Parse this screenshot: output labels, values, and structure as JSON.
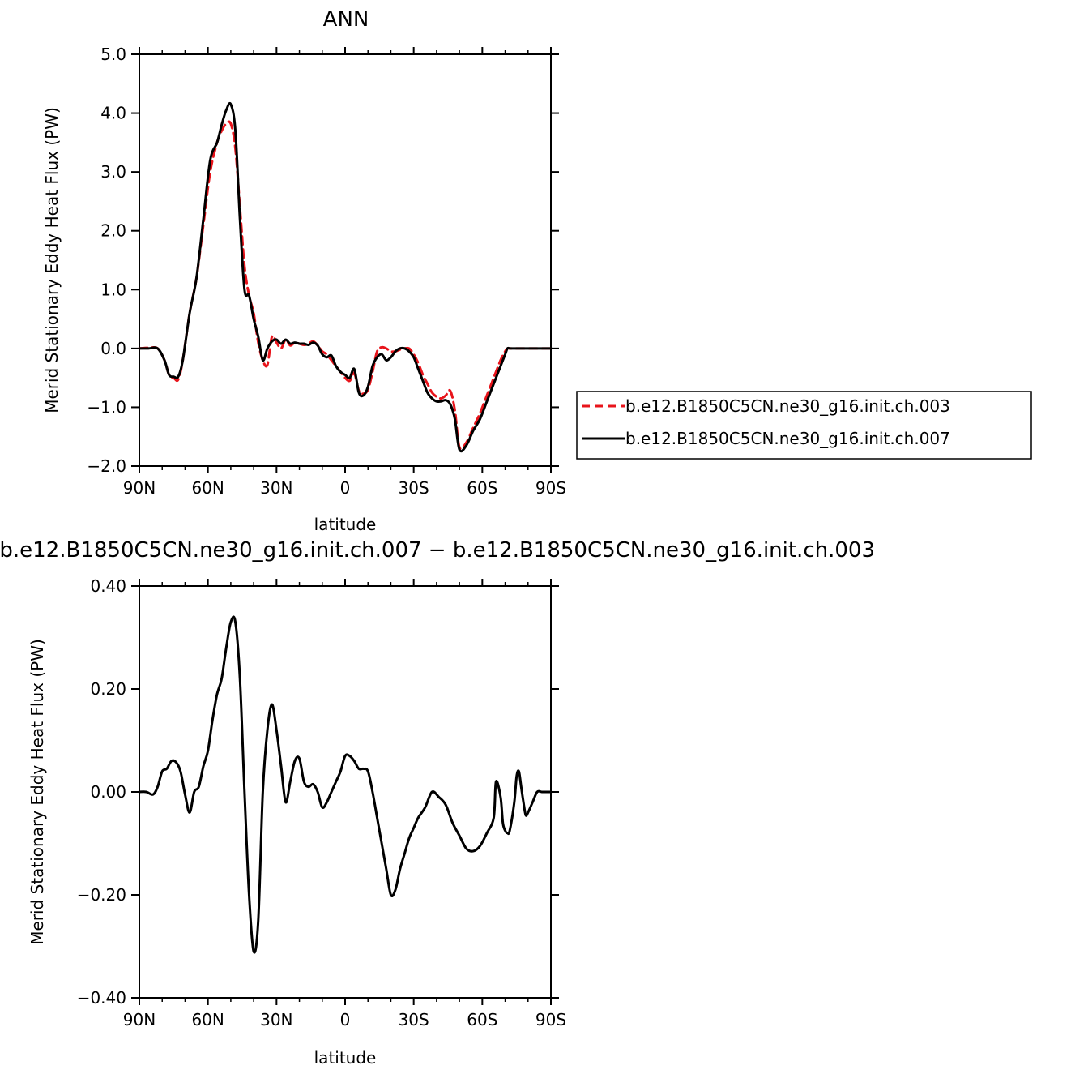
{
  "chart_data": [
    {
      "type": "line",
      "title": "ANN",
      "xlabel": "latitude",
      "ylabel": "Merid Stationary Eddy Heat Flux (PW)",
      "xlim": [
        90,
        -90
      ],
      "ylim": [
        -2.0,
        5.0
      ],
      "x_ticks": [
        {
          "value": 90,
          "label": "90N"
        },
        {
          "value": 60,
          "label": "60N"
        },
        {
          "value": 30,
          "label": "30N"
        },
        {
          "value": 0,
          "label": "0"
        },
        {
          "value": -30,
          "label": "30S"
        },
        {
          "value": -60,
          "label": "60S"
        },
        {
          "value": -90,
          "label": "90S"
        }
      ],
      "y_ticks": [
        {
          "value": 5.0,
          "label": "5.0"
        },
        {
          "value": 4.0,
          "label": "4.0"
        },
        {
          "value": 3.0,
          "label": "3.0"
        },
        {
          "value": 2.0,
          "label": "2.0"
        },
        {
          "value": 1.0,
          "label": "1.0"
        },
        {
          "value": 0.0,
          "label": "0.0"
        },
        {
          "value": -1.0,
          "label": "−1.0"
        },
        {
          "value": -2.0,
          "label": "−2.0"
        }
      ],
      "legend": "right",
      "series": [
        {
          "name": "b.e12.B1850C5CN.ne30_g16.init.ch.003",
          "color": "#e8141b",
          "dash": "dashed",
          "x": [
            90,
            86,
            82,
            79,
            77,
            75,
            73,
            71,
            68,
            65,
            62,
            59,
            56,
            54,
            52,
            50,
            48,
            46,
            44,
            42,
            40,
            38,
            36,
            34,
            32,
            30,
            28,
            26,
            24,
            22,
            20,
            18,
            16,
            14,
            12,
            10,
            8,
            6,
            4,
            2,
            0,
            -2,
            -4,
            -6,
            -8,
            -10,
            -12,
            -14,
            -16,
            -18,
            -20,
            -22,
            -24,
            -26,
            -28,
            -30,
            -32,
            -34,
            -36,
            -38,
            -40,
            -42,
            -44,
            -46,
            -48,
            -50,
            -53,
            -56,
            -59,
            -62,
            -65,
            -68,
            -70,
            -71,
            -72,
            -73,
            -74,
            -76,
            -78,
            -80,
            -82,
            -84,
            -86,
            -88,
            -90
          ],
          "y": [
            0.0,
            0.01,
            0.0,
            -0.2,
            -0.45,
            -0.5,
            -0.53,
            -0.2,
            0.6,
            1.2,
            2.1,
            3.0,
            3.5,
            3.7,
            3.82,
            3.82,
            3.4,
            2.4,
            1.4,
            0.9,
            0.6,
            0.1,
            -0.2,
            -0.28,
            0.2,
            0.1,
            0.0,
            0.15,
            0.05,
            0.1,
            0.08,
            0.06,
            0.08,
            0.12,
            0.05,
            -0.05,
            -0.1,
            -0.2,
            -0.3,
            -0.4,
            -0.5,
            -0.55,
            -0.42,
            -0.72,
            -0.77,
            -0.7,
            -0.4,
            -0.05,
            0.02,
            0.0,
            -0.05,
            -0.05,
            -0.02,
            0.0,
            0.0,
            -0.1,
            -0.25,
            -0.45,
            -0.6,
            -0.75,
            -0.82,
            -0.85,
            -0.8,
            -0.72,
            -1.05,
            -1.68,
            -1.6,
            -1.35,
            -1.1,
            -0.8,
            -0.5,
            -0.2,
            -0.05,
            0.0,
            0.0,
            0.0,
            0.0,
            0.0,
            0.0,
            0.0,
            0.0,
            0.0,
            0.0,
            0.0,
            0.0
          ]
        },
        {
          "name": "b.e12.B1850C5CN.ne30_g16.init.ch.007",
          "color": "#000000",
          "dash": "solid",
          "x": [
            90,
            86,
            82,
            79,
            77,
            75,
            73,
            71,
            68,
            65,
            62,
            59,
            56,
            54,
            52,
            50,
            48,
            46,
            44,
            42,
            40,
            38,
            36,
            34,
            32,
            30,
            28,
            26,
            24,
            22,
            20,
            18,
            16,
            14,
            12,
            10,
            8,
            6,
            4,
            2,
            0,
            -2,
            -4,
            -6,
            -8,
            -10,
            -12,
            -14,
            -16,
            -18,
            -20,
            -22,
            -24,
            -26,
            -28,
            -30,
            -32,
            -34,
            -36,
            -38,
            -40,
            -42,
            -44,
            -46,
            -48,
            -50,
            -53,
            -56,
            -59,
            -62,
            -65,
            -68,
            -70,
            -71,
            -72,
            -73,
            -74,
            -76,
            -78,
            -80,
            -82,
            -84,
            -86,
            -88,
            -90
          ],
          "y": [
            0.0,
            0.0,
            0.0,
            -0.2,
            -0.45,
            -0.48,
            -0.48,
            -0.2,
            0.6,
            1.2,
            2.2,
            3.2,
            3.5,
            3.8,
            4.05,
            4.15,
            3.7,
            2.2,
            1.0,
            0.9,
            0.5,
            0.2,
            -0.2,
            0.0,
            0.12,
            0.15,
            0.08,
            0.15,
            0.08,
            0.1,
            0.08,
            0.08,
            0.06,
            0.1,
            0.05,
            -0.1,
            -0.15,
            -0.12,
            -0.3,
            -0.4,
            -0.45,
            -0.5,
            -0.35,
            -0.75,
            -0.8,
            -0.65,
            -0.3,
            -0.15,
            -0.1,
            -0.2,
            -0.15,
            -0.05,
            0.0,
            0.0,
            -0.05,
            -0.15,
            -0.35,
            -0.55,
            -0.75,
            -0.85,
            -0.9,
            -0.9,
            -0.88,
            -0.95,
            -1.2,
            -1.72,
            -1.65,
            -1.4,
            -1.2,
            -0.9,
            -0.6,
            -0.3,
            -0.1,
            0.0,
            0.0,
            0.0,
            0.0,
            0.0,
            0.0,
            0.0,
            0.0,
            0.0,
            0.0,
            0.0,
            0.0
          ]
        }
      ]
    },
    {
      "type": "line",
      "title": "b.e12.B1850C5CN.ne30_g16.init.ch.007 − b.e12.B1850C5CN.ne30_g16.init.ch.003",
      "xlabel": "latitude",
      "ylabel": "Merid Stationary Eddy Heat Flux (PW)",
      "xlim": [
        90,
        -90
      ],
      "ylim": [
        -0.4,
        0.4
      ],
      "x_ticks": [
        {
          "value": 90,
          "label": "90N"
        },
        {
          "value": 60,
          "label": "60N"
        },
        {
          "value": 30,
          "label": "30N"
        },
        {
          "value": 0,
          "label": "0"
        },
        {
          "value": -30,
          "label": "30S"
        },
        {
          "value": -60,
          "label": "60S"
        },
        {
          "value": -90,
          "label": "90S"
        }
      ],
      "y_ticks": [
        {
          "value": 0.4,
          "label": "0.40"
        },
        {
          "value": 0.2,
          "label": "0.20"
        },
        {
          "value": 0.0,
          "label": "0.00"
        },
        {
          "value": -0.2,
          "label": "−0.20"
        },
        {
          "value": -0.4,
          "label": "−0.40"
        }
      ],
      "series": [
        {
          "color": "#000000",
          "dash": "solid",
          "x": [
            90,
            87,
            84,
            82,
            80,
            78,
            76,
            74,
            72,
            70,
            68,
            66,
            64,
            62,
            60,
            58,
            56,
            54,
            52,
            50,
            48,
            46,
            44,
            42,
            40,
            38,
            36,
            34,
            32,
            30,
            28,
            26,
            24,
            22,
            20,
            18,
            16,
            14,
            12,
            10,
            8,
            6,
            4,
            2,
            0,
            -2,
            -4,
            -6,
            -8,
            -10,
            -12,
            -14,
            -16,
            -18,
            -20,
            -22,
            -24,
            -26,
            -28,
            -30,
            -32,
            -35,
            -38,
            -41,
            -44,
            -47,
            -50,
            -53,
            -56,
            -59,
            -62,
            -65,
            -66,
            -68,
            -69,
            -70,
            -71,
            -72,
            -74,
            -75,
            -76,
            -77,
            -78,
            -79,
            -80,
            -82,
            -84,
            -86,
            -88,
            -90
          ],
          "y": [
            0.0,
            0.0,
            -0.005,
            0.01,
            0.04,
            0.045,
            0.06,
            0.058,
            0.04,
            -0.005,
            -0.04,
            0.0,
            0.01,
            0.05,
            0.08,
            0.14,
            0.19,
            0.22,
            0.28,
            0.33,
            0.33,
            0.22,
            0.0,
            -0.2,
            -0.31,
            -0.25,
            0.0,
            0.12,
            0.17,
            0.12,
            0.05,
            -0.02,
            0.02,
            0.06,
            0.065,
            0.02,
            0.01,
            0.015,
            0.0,
            -0.03,
            -0.02,
            0.0,
            0.02,
            0.04,
            0.07,
            0.07,
            0.06,
            0.045,
            0.045,
            0.04,
            0.0,
            -0.05,
            -0.1,
            -0.15,
            -0.2,
            -0.19,
            -0.15,
            -0.12,
            -0.09,
            -0.07,
            -0.05,
            -0.03,
            0.0,
            -0.01,
            -0.025,
            -0.06,
            -0.085,
            -0.11,
            -0.115,
            -0.105,
            -0.08,
            -0.05,
            0.02,
            -0.01,
            -0.06,
            -0.075,
            -0.08,
            -0.075,
            -0.02,
            0.03,
            0.04,
            0.01,
            -0.02,
            -0.045,
            -0.04,
            -0.02,
            0.0,
            0.0,
            0.0,
            0.0
          ]
        }
      ]
    }
  ]
}
